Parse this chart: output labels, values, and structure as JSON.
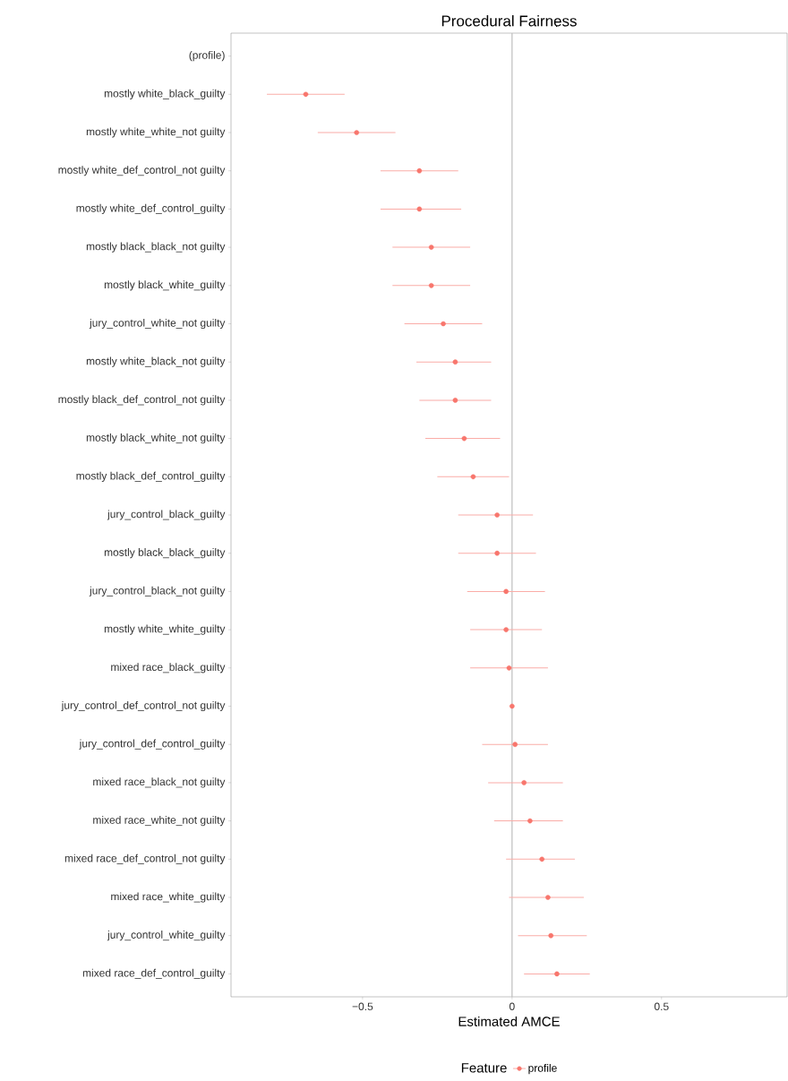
{
  "chart_data": {
    "type": "scatter",
    "orientation": "horizontal",
    "title": "Procedural Fairness",
    "xlabel": "Estimated AMCE",
    "legend_title": "Feature",
    "legend": "bottom",
    "marker": "circle",
    "categories": [
      "(profile)",
      "mostly white_black_guilty",
      "mostly white_white_not guilty",
      "mostly white_def_control_not guilty",
      "mostly white_def_control_guilty",
      "mostly black_black_not guilty",
      "mostly black_white_guilty",
      "jury_control_white_not guilty",
      "mostly white_black_not guilty",
      "mostly black_def_control_not guilty",
      "mostly black_white_not guilty",
      "mostly black_def_control_guilty",
      "jury_control_black_guilty",
      "mostly black_black_guilty",
      "jury_control_black_not guilty",
      "mostly white_white_guilty",
      "mixed race_black_guilty",
      "jury_control_def_control_not guilty",
      "jury_control_def_control_guilty",
      "mixed race_black_not guilty",
      "mixed race_white_not guilty",
      "mixed race_def_control_not guilty",
      "mixed race_white_guilty",
      "jury_control_white_guilty",
      "mixed race_def_control_guilty"
    ],
    "series": [
      {
        "name": "profile",
        "color": "#f8766d",
        "values": [
          null,
          -0.69,
          -0.52,
          -0.31,
          -0.31,
          -0.27,
          -0.27,
          -0.23,
          -0.19,
          -0.19,
          -0.16,
          -0.13,
          -0.05,
          -0.05,
          -0.02,
          -0.02,
          -0.01,
          0,
          0.01,
          0.04,
          0.06,
          0.1,
          0.12,
          0.13,
          0.15
        ],
        "errors": [
          null,
          [
            -0.82,
            -0.56
          ],
          [
            -0.65,
            -0.39
          ],
          [
            -0.44,
            -0.18
          ],
          [
            -0.44,
            -0.17
          ],
          [
            -0.4,
            -0.14
          ],
          [
            -0.4,
            -0.14
          ],
          [
            -0.36,
            -0.1
          ],
          [
            -0.32,
            -0.07
          ],
          [
            -0.31,
            -0.07
          ],
          [
            -0.29,
            -0.04
          ],
          [
            -0.25,
            -0.01
          ],
          [
            -0.18,
            0.07
          ],
          [
            -0.18,
            0.08
          ],
          [
            -0.15,
            0.11
          ],
          [
            -0.14,
            0.1
          ],
          [
            -0.14,
            0.12
          ],
          null,
          [
            -0.1,
            0.12
          ],
          [
            -0.08,
            0.17
          ],
          [
            -0.06,
            0.17
          ],
          [
            -0.02,
            0.21
          ],
          [
            -0.01,
            0.24
          ],
          [
            0.02,
            0.25
          ],
          [
            0.04,
            0.26
          ]
        ]
      }
    ],
    "xlim": [
      -0.94,
      0.92
    ],
    "xticks": [
      {
        "value": -0.5,
        "label": "−0.5"
      },
      0,
      0.5
    ],
    "ref_lines": [
      {
        "axis": "x",
        "value": 0,
        "color": "#bdbdbd"
      }
    ]
  }
}
